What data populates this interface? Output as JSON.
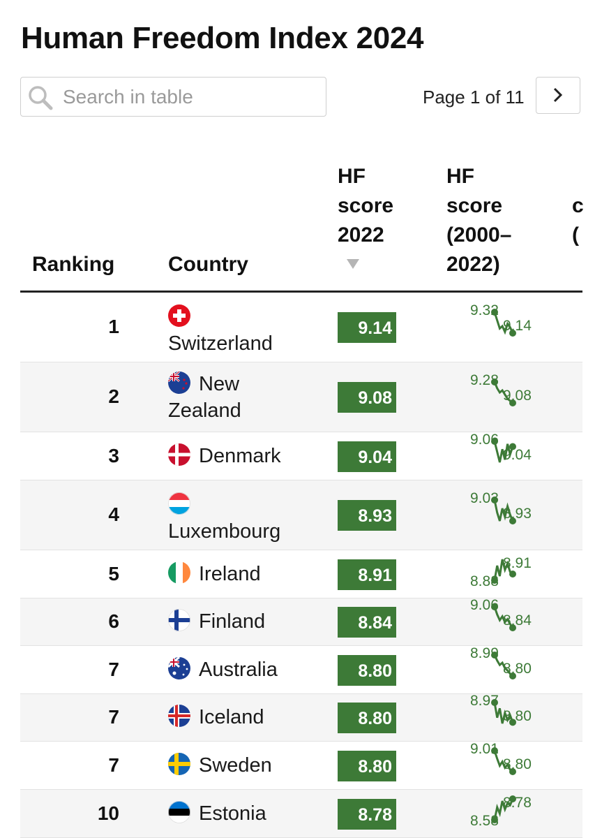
{
  "title": "Human Freedom Index 2024",
  "search": {
    "placeholder": "Search in table"
  },
  "pagination": {
    "label": "Page 1 of 11"
  },
  "colors": {
    "score_bg": "#3d7a37",
    "sparkline": "#3d7a37"
  },
  "icons": {
    "search": "search-icon",
    "next": "chevron-right-icon",
    "sort": "sort-desc-icon"
  },
  "columns": {
    "ranking": "Ranking",
    "country": "Country",
    "hf2022": [
      "HF",
      "score",
      "2022"
    ],
    "hftrend": [
      "HF",
      "score",
      "(2000–",
      "2022)"
    ],
    "next_partial": [
      "c",
      "("
    ]
  },
  "rows": [
    {
      "rank": "1",
      "country": "Switzerland",
      "flag": "switzerland-flag",
      "score": "9.14",
      "start": "9.32",
      "end": "9.14",
      "trend": [
        9.32,
        9.25,
        9.18,
        9.2,
        9.15,
        9.22,
        9.19,
        9.14
      ]
    },
    {
      "rank": "2",
      "country": "New Zealand",
      "flag": "new-zealand-flag",
      "score": "9.08",
      "start": "9.28",
      "end": "9.08",
      "trend": [
        9.28,
        9.22,
        9.18,
        9.2,
        9.16,
        9.12,
        9.1,
        9.08
      ]
    },
    {
      "rank": "3",
      "country": "Denmark",
      "flag": "denmark-flag",
      "score": "9.04",
      "start": "9.06",
      "end": "9.04",
      "trend": [
        9.06,
        9.02,
        8.98,
        9.03,
        8.99,
        9.05,
        9.01,
        9.04
      ]
    },
    {
      "rank": "4",
      "country": "Luxembourg",
      "flag": "luxembourg-flag",
      "score": "8.93",
      "start": "9.03",
      "end": "8.93",
      "trend": [
        9.03,
        8.97,
        8.93,
        8.99,
        8.95,
        9.0,
        8.96,
        8.93
      ]
    },
    {
      "rank": "5",
      "country": "Ireland",
      "flag": "ireland-flag",
      "score": "8.91",
      "start": "8.88",
      "end": "8.91",
      "trend": [
        8.88,
        8.95,
        8.9,
        8.98,
        8.93,
        8.96,
        8.92,
        8.91
      ]
    },
    {
      "rank": "6",
      "country": "Finland",
      "flag": "finland-flag",
      "score": "8.84",
      "start": "9.06",
      "end": "8.84",
      "trend": [
        9.06,
        8.98,
        8.92,
        8.96,
        8.9,
        8.93,
        8.88,
        8.84
      ]
    },
    {
      "rank": "7",
      "country": "Australia",
      "flag": "australia-flag",
      "score": "8.80",
      "start": "8.99",
      "end": "8.80",
      "trend": [
        8.99,
        8.94,
        8.9,
        8.92,
        8.87,
        8.85,
        8.82,
        8.8
      ]
    },
    {
      "rank": "7",
      "country": "Iceland",
      "flag": "iceland-flag",
      "score": "8.80",
      "start": "8.97",
      "end": "8.80",
      "trend": [
        8.97,
        8.84,
        8.92,
        8.79,
        8.88,
        8.82,
        8.86,
        8.8
      ]
    },
    {
      "rank": "7",
      "country": "Sweden",
      "flag": "sweden-flag",
      "score": "8.80",
      "start": "9.01",
      "end": "8.80",
      "trend": [
        9.01,
        8.93,
        8.86,
        8.9,
        8.84,
        8.87,
        8.82,
        8.8
      ]
    },
    {
      "rank": "10",
      "country": "Estonia",
      "flag": "estonia-flag",
      "score": "8.78",
      "start": "8.58",
      "end": "8.78",
      "trend": [
        8.58,
        8.7,
        8.64,
        8.76,
        8.68,
        8.74,
        8.72,
        8.78
      ]
    }
  ]
}
